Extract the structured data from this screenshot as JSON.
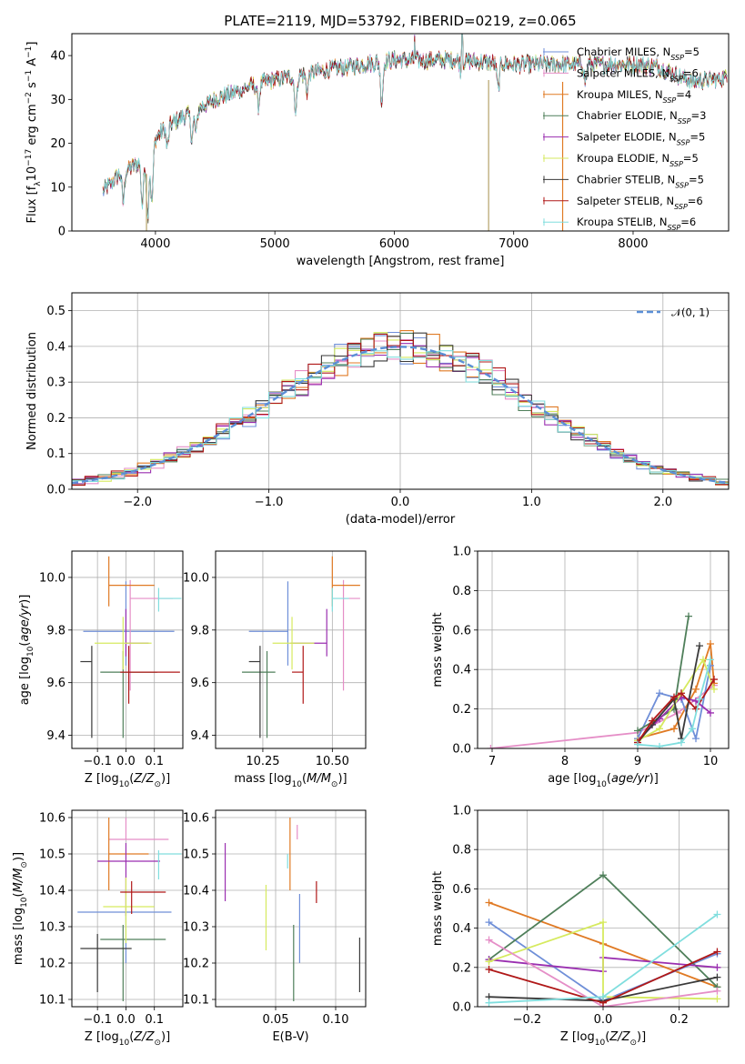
{
  "colors": {
    "cm": "#6f8fd8",
    "sm": "#e58ec7",
    "km": "#e07a24",
    "ce": "#4f7f5a",
    "se": "#9a2fb0",
    "ke": "#d6ea5f",
    "cs": "#3a3a3a",
    "ss": "#b01818",
    "ks": "#80dede",
    "normal": "#5b8fd6"
  },
  "series": [
    {
      "key": "cm",
      "name": "Chabrier MILES, N",
      "n": 5
    },
    {
      "key": "sm",
      "name": "Salpeter MILES, N",
      "n": 6
    },
    {
      "key": "km",
      "name": "Kroupa MILES, N",
      "n": 4
    },
    {
      "key": "ce",
      "name": "Chabrier ELODIE, N",
      "n": 3
    },
    {
      "key": "se",
      "name": "Salpeter ELODIE, N",
      "n": 5
    },
    {
      "key": "ke",
      "name": "Kroupa ELODIE, N",
      "n": 5
    },
    {
      "key": "cs",
      "name": "Chabrier STELIB, N",
      "n": 5
    },
    {
      "key": "ss",
      "name": "Salpeter STELIB, N",
      "n": 6
    },
    {
      "key": "ks",
      "name": "Kroupa STELIB, N",
      "n": 6
    }
  ],
  "legend_sub": "SSP",
  "normal_label": "𝒩(0, 1)",
  "chart_data": [
    {
      "id": "spectrum",
      "type": "line",
      "title": "PLATE=2119, MJD=53792, FIBERID=0219, z=0.065",
      "xlabel": "wavelength [Angstrom, rest frame]",
      "ylabel": "Flux [f_λ10^-17 erg cm^-2 s^-1 A^-1]",
      "xlim": [
        3300,
        8800
      ],
      "ylim": [
        0,
        45
      ],
      "xticks": [
        4000,
        5000,
        6000,
        7000,
        8000
      ],
      "yticks": [
        0,
        10,
        20,
        30,
        40
      ],
      "continuum": [
        [
          3560,
          9
        ],
        [
          3700,
          13
        ],
        [
          3900,
          16
        ],
        [
          3950,
          18
        ],
        [
          4000,
          21
        ],
        [
          4100,
          24
        ],
        [
          4300,
          27
        ],
        [
          4500,
          30
        ],
        [
          4800,
          33
        ],
        [
          5000,
          34.5
        ],
        [
          5200,
          35.5
        ],
        [
          5500,
          37
        ],
        [
          6000,
          39
        ],
        [
          6500,
          39
        ],
        [
          7000,
          38
        ],
        [
          7500,
          38
        ],
        [
          8000,
          38
        ],
        [
          8200,
          37.5
        ],
        [
          8500,
          34
        ],
        [
          8790,
          35
        ]
      ],
      "dips": [
        [
          3730,
          7
        ],
        [
          3890,
          10
        ],
        [
          3935,
          14
        ],
        [
          3970,
          13
        ],
        [
          4100,
          5
        ],
        [
          4305,
          6
        ],
        [
          4340,
          5
        ],
        [
          4862,
          5
        ],
        [
          5175,
          8
        ],
        [
          5270,
          4
        ],
        [
          5895,
          9
        ],
        [
          6563,
          3
        ],
        [
          6870,
          6
        ],
        [
          7600,
          4
        ]
      ],
      "spikes": [
        [
          3925,
          0
        ],
        [
          6790,
          0
        ],
        [
          7410,
          0
        ]
      ],
      "emission": [
        [
          6170,
          44
        ],
        [
          6570,
          45.5
        ]
      ]
    },
    {
      "id": "residuals",
      "type": "histogram",
      "xlabel": "(data-model)/error",
      "ylabel": "Normed distribution",
      "xlim": [
        -2.5,
        2.5
      ],
      "ylim": [
        0,
        0.55
      ],
      "xticks": [
        -2,
        -1,
        0,
        1,
        2
      ],
      "yticks": [
        0.0,
        0.1,
        0.2,
        0.3,
        0.4,
        0.5
      ],
      "bin_width": 0.1,
      "legend": "𝒩(0, 1)"
    },
    {
      "id": "z_age",
      "type": "errorbar",
      "xlabel": "Z [log10(Z/Z⊙)]",
      "ylabel": "age [log10(age/yr)]",
      "xlim": [
        -0.19,
        0.2
      ],
      "ylim": [
        9.35,
        10.1
      ],
      "xticks": [
        -0.1,
        0.0,
        0.1
      ],
      "yticks": [
        9.4,
        9.6,
        9.8,
        10.0
      ],
      "points": [
        {
          "s": "cm",
          "x": 0.0,
          "xe": [
            0.15,
            0.17
          ],
          "y": 9.795,
          "ye": [
            0.13,
            0.19
          ]
        },
        {
          "s": "sm",
          "x": 0.015,
          "xe": [
            0.0,
            0.15
          ],
          "y": 9.92,
          "ye": [
            0.35,
            0.07
          ]
        },
        {
          "s": "km",
          "x": -0.06,
          "xe": [
            0.0,
            0.16
          ],
          "y": 9.97,
          "ye": [
            0.08,
            0.11
          ]
        },
        {
          "s": "ce",
          "x": -0.01,
          "xe": [
            0.08,
            0.12
          ],
          "y": 9.64,
          "ye": [
            0.25,
            0.08
          ]
        },
        {
          "s": "se",
          "x": 0.0,
          "xe": [
            0.0,
            0.08
          ],
          "y": 9.75,
          "ye": [
            0.05,
            0.13
          ]
        },
        {
          "s": "ke",
          "x": -0.01,
          "xe": [
            0.1,
            0.1
          ],
          "y": 9.75,
          "ye": [
            0.1,
            0.1
          ]
        },
        {
          "s": "cs",
          "x": -0.12,
          "xe": [
            0.04,
            0.0
          ],
          "y": 9.68,
          "ye": [
            0.29,
            0.06
          ]
        },
        {
          "s": "ss",
          "x": 0.01,
          "xe": [
            0.03,
            0.18
          ],
          "y": 9.64,
          "ye": [
            0.12,
            0.1
          ]
        },
        {
          "s": "ks",
          "x": 0.115,
          "xe": [
            0.0,
            0.08
          ],
          "y": 9.92,
          "ye": [
            0.05,
            0.04
          ]
        }
      ]
    },
    {
      "id": "mass_age",
      "type": "errorbar",
      "xlabel": "mass [log10(M/M⊙)]",
      "ylabel": "",
      "xlim": [
        10.08,
        10.62
      ],
      "ylim": [
        9.35,
        10.1
      ],
      "xticks": [
        10.25,
        10.5
      ],
      "yticks": [
        9.4,
        9.6,
        9.8,
        10.0
      ],
      "points": [
        {
          "s": "cm",
          "x": 10.34,
          "xe": [
            0.14,
            0.0
          ],
          "y": 9.795,
          "ye": [
            0.13,
            0.19
          ]
        },
        {
          "s": "sm",
          "x": 10.54,
          "xe": [
            0.0,
            0.06
          ],
          "y": 9.92,
          "ye": [
            0.35,
            0.07
          ]
        },
        {
          "s": "km",
          "x": 10.5,
          "xe": [
            0.0,
            0.1
          ],
          "y": 9.97,
          "ye": [
            0.08,
            0.11
          ]
        },
        {
          "s": "ce",
          "x": 10.265,
          "xe": [
            0.09,
            0.03
          ],
          "y": 9.64,
          "ye": [
            0.25,
            0.08
          ]
        },
        {
          "s": "se",
          "x": 10.48,
          "xe": [
            0.13,
            0.0
          ],
          "y": 9.75,
          "ye": [
            0.05,
            0.13
          ]
        },
        {
          "s": "ke",
          "x": 10.355,
          "xe": [
            0.07,
            0.08
          ],
          "y": 9.75,
          "ye": [
            0.1,
            0.1
          ]
        },
        {
          "s": "cs",
          "x": 10.24,
          "xe": [
            0.04,
            0.0
          ],
          "y": 9.68,
          "ye": [
            0.29,
            0.06
          ]
        },
        {
          "s": "ss",
          "x": 10.395,
          "xe": [
            0.04,
            0.0
          ],
          "y": 9.64,
          "ye": [
            0.12,
            0.1
          ]
        },
        {
          "s": "ks",
          "x": 10.5,
          "xe": [
            0.0,
            0.06
          ],
          "y": 9.92,
          "ye": [
            0.05,
            0.04
          ]
        }
      ]
    },
    {
      "id": "age_weight",
      "type": "line",
      "xlabel": "age [log10(age/yr)]",
      "ylabel": "mass weight",
      "xlim": [
        6.8,
        10.25
      ],
      "ylim": [
        0,
        1
      ],
      "xticks": [
        7,
        8,
        9,
        10
      ],
      "yticks": [
        0.0,
        0.2,
        0.4,
        0.6,
        0.8,
        1.0
      ],
      "series": [
        {
          "s": "sm",
          "pts": [
            [
              6.98,
              0.0
            ],
            [
              9.0,
              0.08
            ],
            [
              9.55,
              0.18
            ],
            [
              10.05,
              0.32
            ]
          ]
        },
        {
          "s": "km",
          "pts": [
            [
              9.0,
              0.05
            ],
            [
              9.5,
              0.1
            ],
            [
              9.8,
              0.3
            ],
            [
              10.0,
              0.53
            ],
            [
              10.05,
              0.33
            ]
          ]
        },
        {
          "s": "cm",
          "pts": [
            [
              9.0,
              0.05
            ],
            [
              9.3,
              0.28
            ],
            [
              9.6,
              0.25
            ],
            [
              9.8,
              0.05
            ],
            [
              10.0,
              0.42
            ]
          ]
        },
        {
          "s": "ce",
          "pts": [
            [
              9.0,
              0.09
            ],
            [
              9.5,
              0.2
            ],
            [
              9.7,
              0.67
            ]
          ]
        },
        {
          "s": "se",
          "pts": [
            [
              9.0,
              0.04
            ],
            [
              9.3,
              0.15
            ],
            [
              9.6,
              0.26
            ],
            [
              9.8,
              0.24
            ],
            [
              10.0,
              0.18
            ]
          ]
        },
        {
          "s": "ke",
          "pts": [
            [
              9.0,
              0.04
            ],
            [
              9.3,
              0.1
            ],
            [
              9.6,
              0.28
            ],
            [
              9.9,
              0.45
            ],
            [
              10.05,
              0.3
            ]
          ]
        },
        {
          "s": "cs",
          "pts": [
            [
              9.0,
              0.03
            ],
            [
              9.2,
              0.12
            ],
            [
              9.5,
              0.25
            ],
            [
              9.6,
              0.05
            ],
            [
              9.85,
              0.52
            ]
          ]
        },
        {
          "s": "ss",
          "pts": [
            [
              9.0,
              0.03
            ],
            [
              9.2,
              0.14
            ],
            [
              9.5,
              0.26
            ],
            [
              9.6,
              0.28
            ],
            [
              9.8,
              0.2
            ],
            [
              10.05,
              0.35
            ]
          ]
        },
        {
          "s": "ks",
          "pts": [
            [
              9.0,
              0.02
            ],
            [
              9.3,
              0.01
            ],
            [
              9.6,
              0.03
            ],
            [
              9.75,
              0.1
            ],
            [
              9.85,
              0.25
            ],
            [
              10.0,
              0.45
            ]
          ]
        }
      ]
    },
    {
      "id": "z_mass",
      "type": "errorbar",
      "xlabel": "Z [log10(Z/Z⊙)]",
      "ylabel": "mass [log10(M/M⊙)]",
      "xlim": [
        -0.19,
        0.2
      ],
      "ylim": [
        10.08,
        10.62
      ],
      "xticks": [
        -0.1,
        0.0,
        0.1
      ],
      "yticks": [
        10.1,
        10.2,
        10.3,
        10.4,
        10.5,
        10.6
      ],
      "points": [
        {
          "s": "cm",
          "x": 0.0,
          "xe": [
            0.17,
            0.16
          ],
          "y": 10.34,
          "ye": [
            0.14,
            0.0
          ]
        },
        {
          "s": "sm",
          "x": 0.0,
          "xe": [
            0.06,
            0.15
          ],
          "y": 10.54,
          "ye": [
            0.0,
            0.06
          ]
        },
        {
          "s": "km",
          "x": -0.06,
          "xe": [
            0.0,
            0.14
          ],
          "y": 10.5,
          "ye": [
            0.1,
            0.1
          ]
        },
        {
          "s": "ce",
          "x": -0.01,
          "xe": [
            0.08,
            0.15
          ],
          "y": 10.265,
          "ye": [
            0.17,
            0.04
          ]
        },
        {
          "s": "se",
          "x": 0.0,
          "xe": [
            0.1,
            0.12
          ],
          "y": 10.48,
          "ye": [
            0.15,
            0.05
          ]
        },
        {
          "s": "ke",
          "x": 0.0,
          "xe": [
            0.08,
            0.1
          ],
          "y": 10.355,
          "ye": [
            0.1,
            0.08
          ]
        },
        {
          "s": "cs",
          "x": -0.1,
          "xe": [
            0.06,
            0.12
          ],
          "y": 10.24,
          "ye": [
            0.12,
            0.04
          ]
        },
        {
          "s": "ss",
          "x": 0.02,
          "xe": [
            0.04,
            0.12
          ],
          "y": 10.395,
          "ye": [
            0.06,
            0.03
          ]
        },
        {
          "s": "ks",
          "x": 0.115,
          "xe": [
            0.0,
            0.08
          ],
          "y": 10.5,
          "ye": [
            0.07,
            0.01
          ]
        }
      ]
    },
    {
      "id": "ebv_mass",
      "type": "errorbar",
      "xlabel": "E(B-V)",
      "ylabel": "",
      "xlim": [
        0.0,
        0.125
      ],
      "ylim": [
        10.08,
        10.62
      ],
      "xticks": [
        0.05,
        0.1
      ],
      "yticks": [
        10.1,
        10.2,
        10.3,
        10.4,
        10.5,
        10.6
      ],
      "points": [
        {
          "s": "cm",
          "x": 0.07,
          "ye": [
            0.14,
            0.05
          ],
          "y": 10.34
        },
        {
          "s": "sm",
          "x": 0.068,
          "ye": [
            0.0,
            0.04
          ],
          "y": 10.54
        },
        {
          "s": "km",
          "x": 0.062,
          "ye": [
            0.1,
            0.1
          ],
          "y": 10.5
        },
        {
          "s": "ce",
          "x": 0.065,
          "ye": [
            0.17,
            0.04
          ],
          "y": 10.265
        },
        {
          "s": "se",
          "x": 0.008,
          "ye": [
            0.11,
            0.05
          ],
          "y": 10.48
        },
        {
          "s": "ke",
          "x": 0.042,
          "ye": [
            0.12,
            0.06
          ],
          "y": 10.355
        },
        {
          "s": "cs",
          "x": 0.12,
          "ye": [
            0.12,
            0.03
          ],
          "y": 10.24
        },
        {
          "s": "ss",
          "x": 0.084,
          "ye": [
            0.03,
            0.03
          ],
          "y": 10.395
        },
        {
          "s": "ks",
          "x": 0.06,
          "ye": [
            0.04,
            0.0
          ],
          "y": 10.5
        }
      ]
    },
    {
      "id": "z_weight",
      "type": "line",
      "xlabel": "Z [log10(Z/Z⊙)]",
      "ylabel": "mass weight",
      "xlim": [
        -0.33,
        0.33
      ],
      "ylim": [
        0,
        1
      ],
      "xticks": [
        -0.2,
        0.0,
        0.2
      ],
      "yticks": [
        0.0,
        0.2,
        0.4,
        0.6,
        0.8,
        1.0
      ],
      "series": [
        {
          "s": "km",
          "pts": [
            [
              -0.3,
              0.53
            ],
            [
              0.0,
              0.32
            ],
            [
              0.3,
              0.1
            ]
          ]
        },
        {
          "s": "cm",
          "pts": [
            [
              -0.3,
              0.43
            ],
            [
              0.0,
              0.03
            ],
            [
              0.3,
              0.27
            ]
          ]
        },
        {
          "s": "ce",
          "pts": [
            [
              -0.3,
              0.24
            ],
            [
              0.0,
              0.67
            ],
            [
              0.3,
              0.1
            ]
          ]
        },
        {
          "s": "se",
          "pts": [
            [
              -0.3,
              0.24
            ],
            [
              0.0,
              0.18
            ],
            [
              0.0,
              0.25
            ],
            [
              0.3,
              0.2
            ]
          ]
        },
        {
          "s": "ke",
          "pts": [
            [
              -0.3,
              0.23
            ],
            [
              0.0,
              0.43
            ],
            [
              0.0,
              0.05
            ],
            [
              0.3,
              0.04
            ]
          ]
        },
        {
          "s": "sm",
          "pts": [
            [
              -0.3,
              0.34
            ],
            [
              0.0,
              0.0
            ],
            [
              0.3,
              0.08
            ]
          ]
        },
        {
          "s": "cs",
          "pts": [
            [
              -0.3,
              0.05
            ],
            [
              0.0,
              0.03
            ],
            [
              0.3,
              0.15
            ]
          ]
        },
        {
          "s": "ss",
          "pts": [
            [
              -0.3,
              0.19
            ],
            [
              0.0,
              0.02
            ],
            [
              0.3,
              0.28
            ]
          ]
        },
        {
          "s": "ks",
          "pts": [
            [
              -0.3,
              0.02
            ],
            [
              0.0,
              0.05
            ],
            [
              0.3,
              0.47
            ]
          ]
        }
      ]
    }
  ]
}
